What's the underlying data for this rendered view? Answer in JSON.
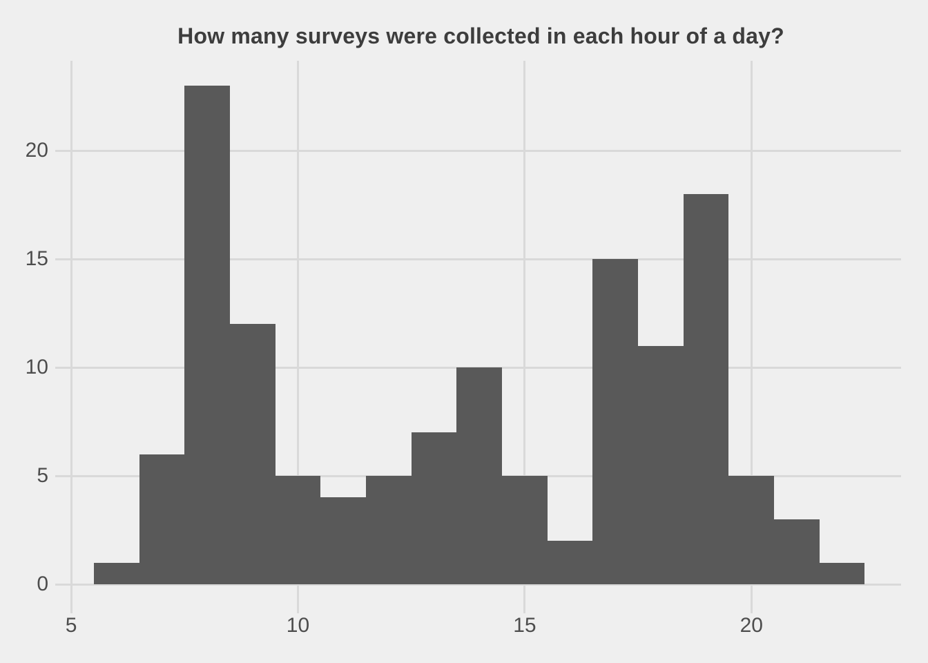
{
  "chart_data": {
    "type": "bar",
    "subtype": "histogram",
    "title": "How many surveys were collected in each hour of a day?",
    "xlabel": "",
    "ylabel": "",
    "bin_width": 1,
    "bin_centers": [
      6,
      7,
      8,
      9,
      10,
      11,
      12,
      13,
      14,
      15,
      16,
      17,
      18,
      19,
      20,
      21,
      22
    ],
    "counts": [
      1,
      6,
      23,
      12,
      5,
      4,
      5,
      7,
      10,
      5,
      2,
      15,
      11,
      18,
      5,
      3,
      1
    ],
    "x_ticks": [
      5,
      10,
      15,
      20
    ],
    "y_ticks": [
      0,
      5,
      10,
      15,
      20
    ],
    "xlim": [
      4.77,
      23.3
    ],
    "ylim": [
      -1.08,
      24.14
    ],
    "grid": "major-only",
    "legend": "none",
    "colors": {
      "bar": "#595959",
      "background": "#EFEFEF",
      "gridline": "#D9D9D9",
      "tick_label": "#4D4D4D",
      "title": "#3D3D3D"
    }
  }
}
